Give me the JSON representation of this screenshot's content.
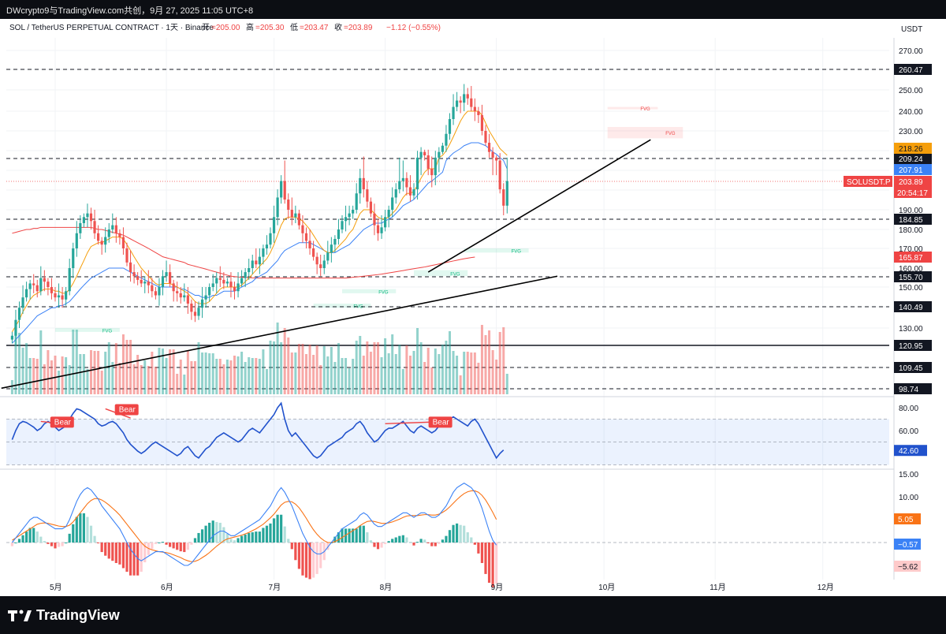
{
  "header": {
    "attribution": "DWcrypto9与TradingView.com共创，9月 27, 2025 11:05 UTC+8",
    "symbol_line": "SOL / TetherUS PERPETUAL CONTRACT · 1天 · Binance",
    "ohlc": [
      {
        "label": "开",
        "value": "=205.00"
      },
      {
        "label": "高",
        "value": "=205.30"
      },
      {
        "label": "低",
        "value": "=203.47"
      },
      {
        "label": "收",
        "value": "=203.89"
      }
    ],
    "change": "−1.12 (−0.55%)",
    "currency": "USDT"
  },
  "footer": {
    "brand": "TradingView"
  },
  "chart_data": {
    "type": "candlestick",
    "symbol": "SOLUSDT.P",
    "timeframe": "1天",
    "exchange": "Binance",
    "ylim": [
      120,
      275
    ],
    "price_ticks": [
      "270.00",
      "250.00",
      "240.00",
      "230.00",
      "190.00",
      "180.00",
      "170.00",
      "160.00",
      "150.00",
      "130.00"
    ],
    "x_ticks": [
      "5月",
      "6月",
      "7月",
      "8月",
      "9月",
      "10月",
      "11月",
      "12月"
    ],
    "x_months": [
      0,
      31,
      61,
      92,
      123,
      153,
      184,
      214
    ],
    "horizontal_levels": [
      {
        "value": 260.47,
        "style": "dashed",
        "label": "260.47"
      },
      {
        "value": 209.24,
        "style": "dashed",
        "label": "209.24"
      },
      {
        "value": 184.85,
        "style": "dashed",
        "label": "184.85"
      },
      {
        "value": 155.7,
        "style": "dashed",
        "label": "155.70"
      },
      {
        "value": 140.49,
        "style": "dashed",
        "label": "140.49"
      },
      {
        "value": 120.95,
        "style": "solid",
        "label": "120.95"
      },
      {
        "value": 109.45,
        "style": "dashed",
        "label": "109.45"
      },
      {
        "value": 98.74,
        "style": "dashed",
        "label": "98.74"
      }
    ],
    "price_tags": [
      {
        "value": 218.26,
        "label": "218.26",
        "color": "#f59e0b"
      },
      {
        "value": 207.91,
        "label": "207.91",
        "color": "#3b82f6"
      },
      {
        "value": 203.89,
        "label": "203.89",
        "color": "#ef4444"
      },
      {
        "value": 165.87,
        "label": "165.87",
        "color": "#ef4444"
      }
    ],
    "symbol_tag": "SOLUSDT.P",
    "countdown": "20:54:17",
    "fvg_label": "FVG",
    "fvg_zones": [
      {
        "x0": 154,
        "x1": 175,
        "y0": 225,
        "y1": 232,
        "kind": "bear"
      },
      {
        "x0": 154,
        "x1": 168,
        "y0": 241,
        "y1": 242,
        "kind": "bear"
      },
      {
        "x0": 114,
        "x1": 132,
        "y0": 168,
        "y1": 170,
        "kind": "bull"
      },
      {
        "x0": 100,
        "x1": 115,
        "y0": 156,
        "y1": 159,
        "kind": "bull"
      },
      {
        "x0": 80,
        "x1": 95,
        "y0": 147,
        "y1": 149,
        "kind": "bull"
      },
      {
        "x0": 72,
        "x1": 88,
        "y0": 140,
        "y1": 142,
        "kind": "bull"
      },
      {
        "x0": 0,
        "x1": 18,
        "y0": 128,
        "y1": 130,
        "kind": "bull"
      }
    ],
    "trendlines": [
      {
        "x0": -15,
        "y0": 99,
        "x1": 140,
        "y1": 156,
        "color": "#000000"
      },
      {
        "x0": 104,
        "y0": 158,
        "x1": 166,
        "y1": 224,
        "color": "#000000"
      }
    ],
    "closes": [
      126,
      134,
      140,
      145,
      149,
      152,
      151,
      148,
      155,
      153,
      150,
      147,
      145,
      146,
      144,
      148,
      160,
      170,
      178,
      183,
      186,
      188,
      184,
      178,
      174,
      172,
      176,
      180,
      182,
      178,
      176,
      170,
      163,
      158,
      156,
      154,
      152,
      153,
      151,
      148,
      146,
      150,
      156,
      158,
      152,
      148,
      147,
      145,
      146,
      142,
      138,
      136,
      140,
      144,
      146,
      150,
      152,
      155,
      154,
      152,
      153,
      150,
      148,
      152,
      155,
      158,
      160,
      164,
      162,
      166,
      170,
      172,
      178,
      186,
      196,
      204,
      195,
      190,
      186,
      188,
      182,
      178,
      174,
      170,
      166,
      162,
      160,
      164,
      168,
      172,
      175,
      180,
      184,
      186,
      188,
      190,
      198,
      205,
      200,
      194,
      188,
      182,
      178,
      181,
      186,
      190,
      196,
      200,
      204,
      205,
      201,
      197,
      200,
      210,
      215,
      212,
      208,
      206,
      210,
      215,
      220,
      228,
      236,
      242,
      245,
      244,
      248,
      246,
      242,
      240,
      238,
      230,
      222,
      215,
      210,
      209,
      200,
      192,
      204
    ],
    "ma_fast": [
      128,
      131,
      134,
      138,
      141,
      144,
      146,
      147,
      148,
      149,
      149,
      149,
      148,
      148,
      147,
      147,
      149,
      152,
      156,
      160,
      164,
      168,
      171,
      172,
      173,
      173,
      174,
      175,
      176,
      176,
      176,
      175,
      172,
      169,
      166,
      163,
      160,
      158,
      156,
      154,
      152,
      151,
      152,
      152,
      152,
      151,
      150,
      149,
      148,
      147,
      145,
      143,
      142,
      142,
      142,
      143,
      145,
      147,
      149,
      150,
      150,
      150,
      150,
      150,
      151,
      153,
      155,
      157,
      159,
      161,
      163,
      165,
      168,
      172,
      177,
      182,
      185,
      186,
      186,
      186,
      185,
      184,
      182,
      180,
      177,
      174,
      171,
      169,
      168,
      168,
      169,
      171,
      173,
      175,
      178,
      180,
      184,
      188,
      190,
      190,
      190,
      188,
      186,
      185,
      185,
      186,
      188,
      190,
      193,
      196,
      198,
      198,
      199,
      202,
      205,
      207,
      208,
      208,
      208,
      210,
      212,
      216,
      221,
      226,
      231,
      235,
      238,
      240,
      240,
      240,
      240,
      238,
      234,
      230,
      226,
      222,
      218,
      215,
      212
    ],
    "ma_mid": [
      122,
      124,
      126,
      128,
      130,
      132,
      134,
      136,
      137,
      138,
      139,
      140,
      140,
      141,
      141,
      142,
      143,
      145,
      147,
      149,
      151,
      153,
      155,
      156,
      157,
      158,
      159,
      160,
      160,
      160,
      160,
      160,
      159,
      158,
      157,
      156,
      155,
      154,
      153,
      152,
      151,
      150,
      150,
      150,
      150,
      150,
      150,
      149,
      149,
      148,
      147,
      146,
      146,
      145,
      145,
      145,
      146,
      146,
      147,
      148,
      148,
      148,
      148,
      149,
      150,
      151,
      152,
      153,
      155,
      156,
      157,
      158,
      160,
      162,
      164,
      167,
      169,
      170,
      171,
      172,
      173,
      173,
      173,
      173,
      172,
      171,
      170,
      169,
      168,
      168,
      168,
      169,
      170,
      171,
      172,
      174,
      176,
      178,
      180,
      181,
      182,
      183,
      183,
      183,
      184,
      185,
      186,
      188,
      190,
      192,
      193,
      194,
      195,
      197,
      199,
      201,
      203,
      204,
      205,
      206,
      207,
      209,
      211,
      214,
      216,
      218,
      220,
      221,
      222,
      222,
      222,
      221,
      220,
      218,
      215,
      213,
      210,
      209,
      208
    ],
    "ma_slow": [
      178,
      178.5,
      179,
      179.5,
      180,
      180,
      180.5,
      180.5,
      181,
      181,
      181,
      181,
      181,
      181,
      181,
      181,
      181,
      181,
      181,
      181,
      181,
      181,
      181,
      180.5,
      180,
      180,
      179.5,
      179,
      178.5,
      178,
      177.5,
      177,
      176,
      175,
      174,
      173,
      172,
      171,
      170,
      169,
      168,
      167,
      166,
      165.5,
      165,
      164.5,
      164,
      163.5,
      163,
      162,
      161.5,
      161,
      160.5,
      160,
      159.5,
      159,
      158.5,
      158,
      157.5,
      157,
      156.5,
      156,
      155.8,
      155.6,
      155.4,
      155.3,
      155.2,
      155.1,
      155,
      155,
      155,
      155,
      155,
      155,
      155,
      155,
      155,
      155,
      155,
      155,
      155,
      155,
      155,
      155,
      155,
      155,
      155,
      155,
      155,
      155,
      155,
      155,
      155,
      155,
      155.2,
      155.4,
      155.6,
      155.8,
      156,
      156.2,
      156.4,
      156.6,
      156.8,
      157,
      157.3,
      157.6,
      157.9,
      158.2,
      158.5,
      158.8,
      159.1,
      159.4,
      159.7,
      160,
      160.3,
      160.6,
      161,
      161.4,
      161.8,
      162.2,
      162.6,
      163,
      163.4,
      163.8,
      164.2,
      164.6,
      165,
      165.3,
      165.6,
      165.87
    ],
    "rsi": {
      "ticks": [
        "80.00",
        "60.00"
      ],
      "current": "42.60",
      "bands": [
        70,
        50,
        30
      ],
      "values": [
        52,
        60,
        66,
        68,
        67,
        65,
        63,
        60,
        62,
        66,
        68,
        66,
        63,
        60,
        62,
        64,
        70,
        75,
        79,
        78,
        76,
        74,
        72,
        70,
        66,
        64,
        65,
        67,
        68,
        66,
        62,
        58,
        52,
        48,
        45,
        42,
        40,
        42,
        45,
        48,
        50,
        48,
        46,
        44,
        42,
        40,
        38,
        40,
        44,
        46,
        42,
        38,
        36,
        40,
        44,
        46,
        50,
        54,
        56,
        58,
        56,
        54,
        52,
        50,
        52,
        56,
        60,
        62,
        60,
        58,
        62,
        66,
        70,
        74,
        80,
        84,
        70,
        60,
        55,
        58,
        54,
        50,
        46,
        42,
        38,
        36,
        38,
        42,
        46,
        48,
        50,
        52,
        54,
        58,
        60,
        62,
        66,
        68,
        64,
        58,
        54,
        50,
        52,
        56,
        60,
        62,
        62,
        64,
        66,
        68,
        64,
        60,
        58,
        62,
        64,
        62,
        60,
        58,
        60,
        64,
        66,
        68,
        70,
        72,
        70,
        68,
        66,
        64,
        68,
        70,
        66,
        60,
        54,
        48,
        42,
        36,
        40,
        43
      ],
      "divergence_label": "Bear",
      "divergences": [
        {
          "x0": 8,
          "y0": 68,
          "x1": 14,
          "y1": 66
        },
        {
          "x0": 26,
          "y0": 79,
          "x1": 33,
          "y1": 71
        },
        {
          "x0": 104,
          "y0": 66,
          "x1": 122,
          "y1": 68
        }
      ]
    },
    "macd": {
      "ticks": [
        "15.00",
        "10.00"
      ],
      "labels": [
        {
          "value": 5.05,
          "label": "5.05",
          "color": "#f97316"
        },
        {
          "value": -0.57,
          "label": "−0.57",
          "color": "#3b82f6"
        },
        {
          "value": -5.62,
          "label": "−5.62",
          "color": "#f8b4b4"
        }
      ],
      "macd_line": [
        0,
        1,
        2,
        3,
        4,
        5,
        5.5,
        5.5,
        5,
        4.5,
        4,
        3.5,
        3,
        3,
        3,
        3.5,
        5,
        7,
        9,
        10.5,
        11.5,
        12,
        11.5,
        10.5,
        9.5,
        8,
        7,
        6,
        5,
        4,
        3,
        1.5,
        0,
        -1.5,
        -2.5,
        -3.5,
        -4,
        -3.5,
        -3,
        -2.5,
        -2,
        -2,
        -2,
        -2.5,
        -3,
        -3.5,
        -4,
        -4.5,
        -5,
        -5,
        -4.5,
        -3.5,
        -2.5,
        -1.5,
        -0.5,
        0.5,
        1.5,
        2,
        2.5,
        2.5,
        2,
        1.5,
        1.5,
        2,
        2.5,
        3,
        3.5,
        4,
        4.5,
        5,
        6,
        7,
        8,
        9.5,
        11,
        12,
        11,
        9.5,
        8,
        6,
        4,
        2,
        0.5,
        -1,
        -2,
        -2.5,
        -2.5,
        -2,
        -1,
        0,
        1,
        2,
        3,
        3.5,
        4,
        4.5,
        5,
        6,
        6.5,
        6,
        5,
        4,
        3.5,
        3.5,
        4,
        4.5,
        5,
        5.5,
        6,
        6.5,
        6.5,
        6,
        5.5,
        6,
        6.5,
        6.5,
        6,
        5.5,
        5.5,
        6,
        7,
        8,
        9.5,
        11,
        12,
        12.5,
        13,
        12.5,
        12,
        11,
        9.5,
        7.5,
        5,
        2.5,
        0.5,
        -0.57
      ],
      "signal_line": [
        0.5,
        1,
        1.5,
        2,
        2.5,
        3,
        3.5,
        4,
        4.2,
        4.3,
        4.2,
        4,
        3.8,
        3.6,
        3.5,
        3.5,
        3.8,
        4.5,
        5.5,
        6.5,
        7.5,
        8.5,
        9.2,
        9.6,
        9.6,
        9.3,
        8.8,
        8.2,
        7.5,
        6.8,
        6,
        5,
        4,
        3,
        2,
        1,
        0,
        -0.8,
        -1.3,
        -1.6,
        -1.8,
        -2,
        -2.1,
        -2.2,
        -2.4,
        -2.7,
        -3,
        -3.3,
        -3.7,
        -4,
        -4.2,
        -4.1,
        -3.8,
        -3.3,
        -2.8,
        -2.2,
        -1.5,
        -0.8,
        -0.2,
        0.4,
        0.8,
        1,
        1.2,
        1.4,
        1.6,
        1.9,
        2.2,
        2.6,
        3,
        3.5,
        4,
        4.7,
        5.4,
        6.2,
        7.2,
        8.2,
        8.8,
        9,
        8.9,
        8.4,
        7.6,
        6.5,
        5.3,
        4,
        2.8,
        1.8,
        1,
        0.4,
        0,
        0,
        0.2,
        0.6,
        1.1,
        1.6,
        2.1,
        2.6,
        3.1,
        3.7,
        4.2,
        4.6,
        4.7,
        4.6,
        4.4,
        4.2,
        4.2,
        4.3,
        4.5,
        4.8,
        5.1,
        5.5,
        5.8,
        5.9,
        5.9,
        5.9,
        6,
        6.1,
        6.1,
        6,
        6,
        6.2,
        6.6,
        7.1,
        7.8,
        8.6,
        9.4,
        10.1,
        10.7,
        11.1,
        11.3,
        11.3,
        11,
        10.3,
        9.3,
        8,
        6.6,
        5.05
      ]
    }
  }
}
